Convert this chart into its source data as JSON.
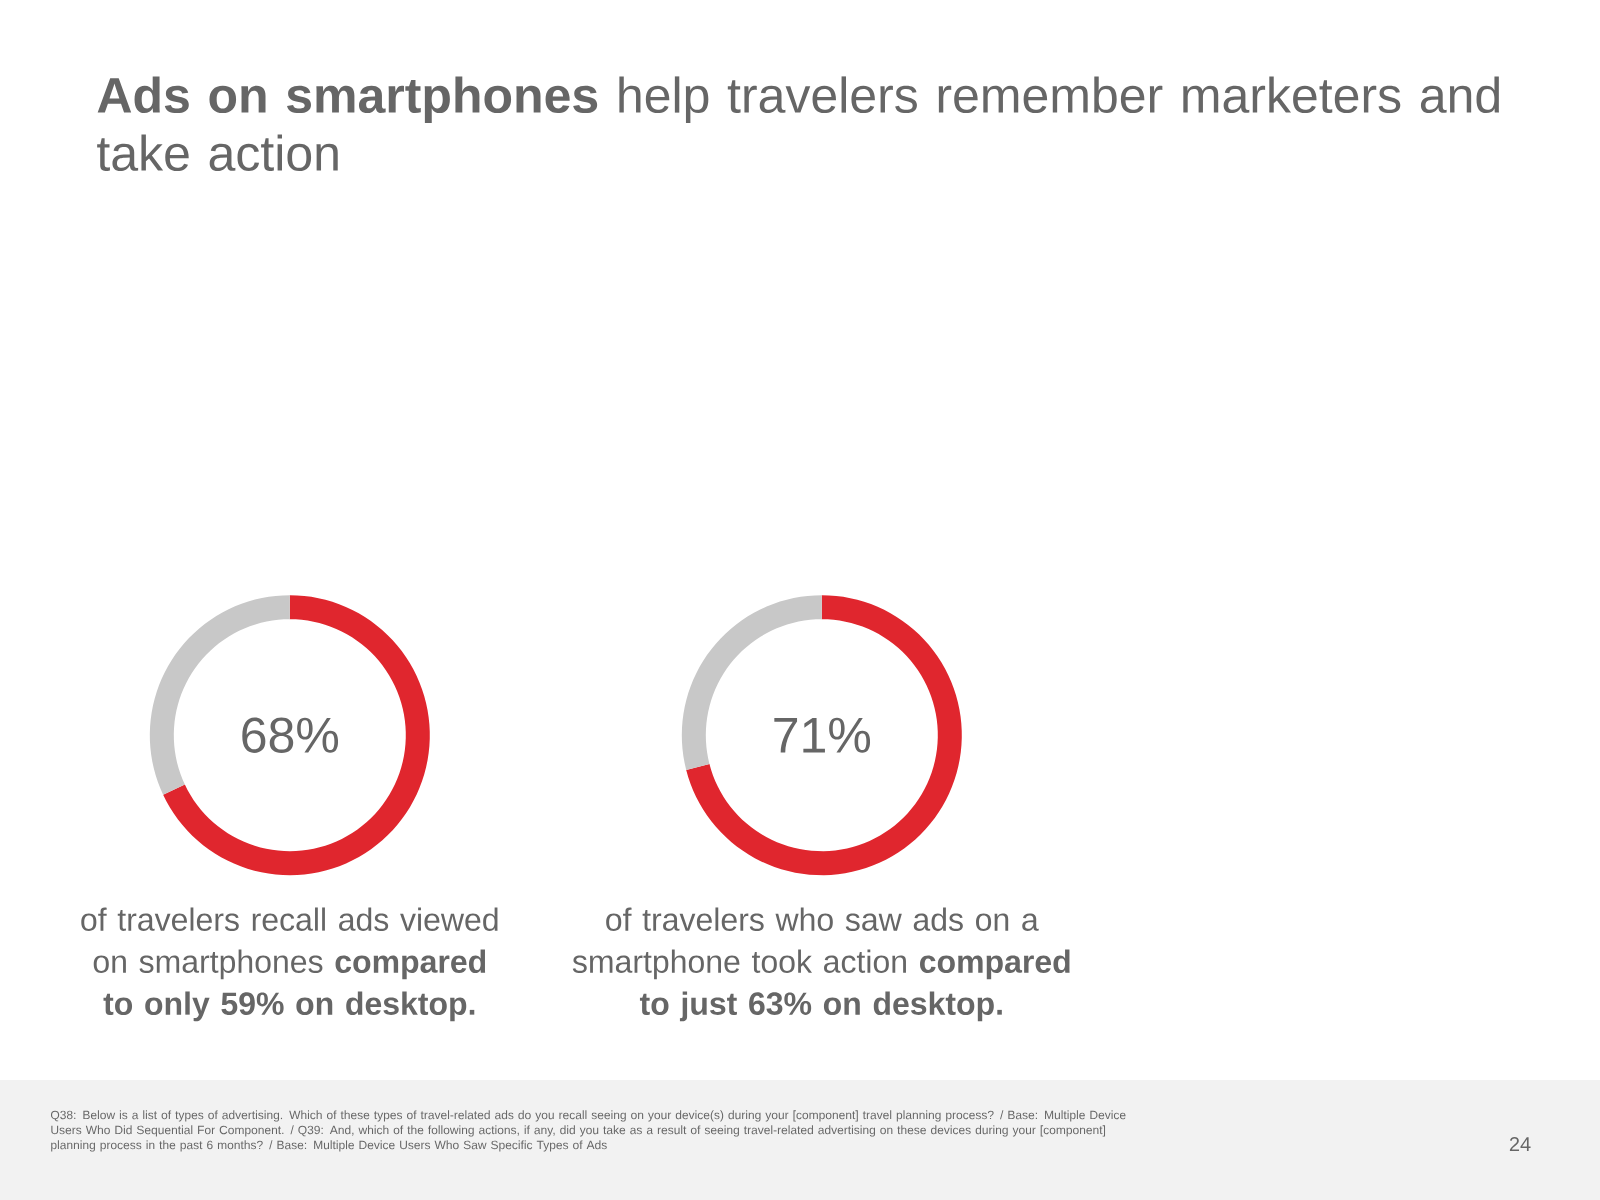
{
  "chart_data": [
    {
      "type": "donut",
      "title": "**Ads on smartphones** help travelers remember marketers and take action",
      "categories": [
        null,
        null
      ],
      "values": [
        68,
        32
      ],
      "colors": [
        "#e0262e",
        "#c8c8c8"
      ],
      "value_labels": [
        "68%",
        null
      ],
      "annotations": [
        "of travelers recall ads viewed on smartphones **compared to only 59% on desktop.**",
        "Q38: Below is a list of types of advertising. Which of these types of travel-related ads do you recall seeing on your device(s) during your [component] travel planning process? / Base: Multiple Device Users Who Did Sequential For Component. / Q39: And, which of the following actions, if any, did you take as a result of seeing travel-related advertising on these devices during your [component] planning process in the past 6 months? / Base: Multiple Device Users Who Saw Specific Types of Ads",
        "24"
      ]
    },
    {
      "type": "donut",
      "categories": [
        null,
        null
      ],
      "values": [
        71,
        29
      ],
      "colors": [
        "#e0262e",
        "#c8c8c8"
      ],
      "value_labels": [
        "71%",
        null
      ],
      "annotations": [
        "of travelers who saw ads on a smartphone took action **compared to just 63% on desktop.**"
      ]
    }
  ]
}
